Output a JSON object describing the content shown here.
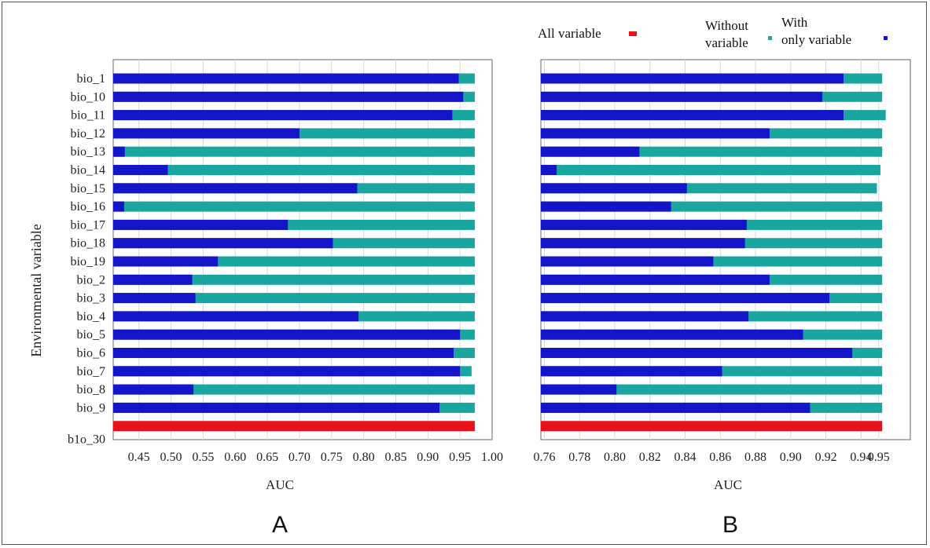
{
  "colors": {
    "with_only": "#1414c8",
    "without": "#1aa6a0",
    "all": "#e8121c",
    "grid": "#d8d8d8",
    "frame": "#666666"
  },
  "legend": {
    "all_variable": "All variable",
    "without_variable_line1": "Without",
    "without_variable_line2": "variable",
    "with_only_line1": "With",
    "with_only_line2": "only variable"
  },
  "y_axis_title": "Environmental variable",
  "categories": [
    "bio_1",
    "bio_10",
    "bio_11",
    "bio_12",
    "bio_13",
    "bio_14",
    "bio_15",
    "bio_16",
    "bio_17",
    "bio_18",
    "bio_19",
    "bio_2",
    "bio_3",
    "bio_4",
    "bio_5",
    "bio_6",
    "bio_7",
    "bio_8",
    "bio_9",
    "b1o_30"
  ],
  "chart_data": [
    {
      "type": "bar",
      "panel_label": "A",
      "xlabel": "AUC",
      "xlim": [
        0.41,
        1.0
      ],
      "xticks": [
        "0.45",
        "0.50",
        "0.55",
        "0.60",
        "0.65",
        "0.70",
        "0.75",
        "0.80",
        "0.85",
        "0.90",
        "0.95",
        "1.00"
      ],
      "xtick_values": [
        0.45,
        0.5,
        0.55,
        0.6,
        0.65,
        0.7,
        0.75,
        0.8,
        0.85,
        0.9,
        0.95,
        1.0
      ],
      "series": [
        {
          "name": "Without variable",
          "key": "without",
          "values": [
            0.973,
            0.973,
            0.973,
            0.973,
            0.973,
            0.973,
            0.973,
            0.973,
            0.973,
            0.973,
            0.973,
            0.973,
            0.973,
            0.973,
            0.973,
            0.973,
            0.968,
            0.973,
            0.973,
            null
          ]
        },
        {
          "name": "With only variable",
          "key": "with_only",
          "values": [
            0.948,
            0.955,
            0.938,
            0.7,
            0.428,
            0.495,
            0.79,
            0.427,
            0.682,
            0.752,
            0.573,
            0.533,
            0.538,
            0.792,
            0.95,
            0.94,
            0.95,
            0.535,
            0.918,
            null
          ]
        },
        {
          "name": "All variable",
          "key": "all",
          "values": [
            null,
            null,
            null,
            null,
            null,
            null,
            null,
            null,
            null,
            null,
            null,
            null,
            null,
            null,
            null,
            null,
            null,
            null,
            null,
            0.973
          ]
        }
      ]
    },
    {
      "type": "bar",
      "panel_label": "B",
      "xlabel": "AUC",
      "xlim": [
        0.758,
        0.968
      ],
      "xticks": [
        "0.76",
        "0.78",
        "0.80",
        "0.82",
        "0.84",
        "0.86",
        "0.88",
        "0.90",
        "0.92",
        "0.94",
        "0.95"
      ],
      "xtick_values": [
        0.76,
        0.78,
        0.8,
        0.82,
        0.84,
        0.86,
        0.88,
        0.9,
        0.92,
        0.94,
        0.95
      ],
      "series": [
        {
          "name": "Without variable",
          "key": "without",
          "values": [
            0.952,
            0.952,
            0.954,
            0.952,
            0.952,
            0.951,
            0.949,
            0.952,
            0.952,
            0.952,
            0.952,
            0.952,
            0.952,
            0.952,
            0.952,
            0.952,
            0.952,
            0.952,
            0.952,
            null
          ]
        },
        {
          "name": "With only variable",
          "key": "with_only",
          "values": [
            0.93,
            0.918,
            0.93,
            0.888,
            0.814,
            0.767,
            0.841,
            0.832,
            0.875,
            0.874,
            0.856,
            0.888,
            0.922,
            0.876,
            0.907,
            0.935,
            0.861,
            0.801,
            0.911,
            null
          ]
        },
        {
          "name": "All variable",
          "key": "all",
          "values": [
            null,
            null,
            null,
            null,
            null,
            null,
            null,
            null,
            null,
            null,
            null,
            null,
            null,
            null,
            null,
            null,
            null,
            null,
            null,
            0.952
          ]
        }
      ]
    }
  ]
}
